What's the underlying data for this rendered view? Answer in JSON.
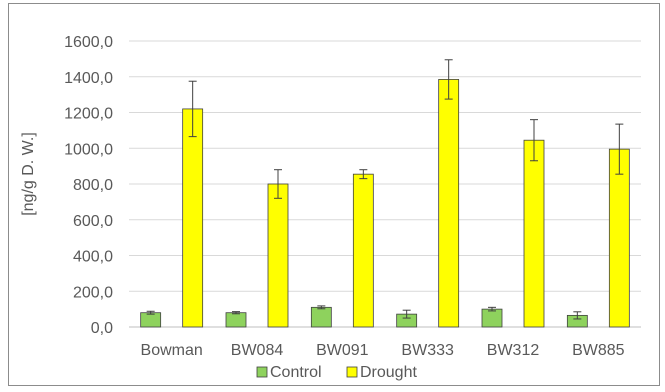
{
  "chart_data": {
    "type": "bar",
    "title": "",
    "xlabel": "",
    "ylabel": "[ng/g D. W.]",
    "ylim": [
      0,
      1600
    ],
    "y_ticks": [
      "0,0",
      "200,0",
      "400,0",
      "600,0",
      "800,0",
      "1000,0",
      "1200,0",
      "1400,0",
      "1600,0"
    ],
    "grid": true,
    "legend_position": "bottom",
    "categories": [
      "Bowman",
      "BW084",
      "BW091",
      "BW333",
      "BW312",
      "BW885"
    ],
    "series": [
      {
        "name": "Control",
        "color": "#8ed25d",
        "values": [
          80,
          80,
          110,
          72,
          100,
          65
        ],
        "errors": [
          8,
          6,
          8,
          22,
          10,
          20
        ]
      },
      {
        "name": "Drought",
        "color": "#ffff00",
        "values": [
          1220,
          800,
          855,
          1385,
          1045,
          995
        ],
        "errors": [
          155,
          80,
          25,
          110,
          115,
          140
        ]
      }
    ]
  }
}
